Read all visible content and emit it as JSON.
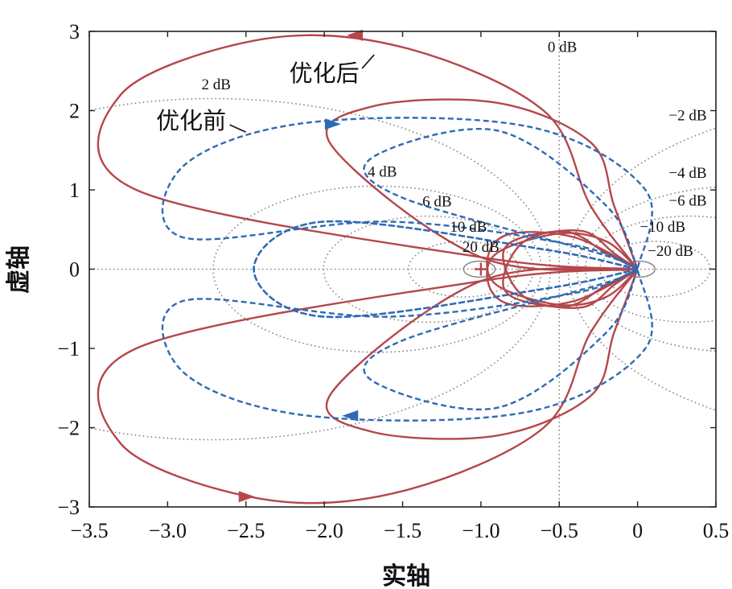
{
  "chart_data": {
    "type": "line",
    "subtype": "nyquist",
    "xlabel": "实轴",
    "ylabel": "虚轴",
    "xlim": [
      -3.5,
      0.5
    ],
    "ylim": [
      -3,
      3
    ],
    "xticks": [
      -3.5,
      -3.0,
      -2.5,
      -2.0,
      -1.5,
      -1.0,
      -0.5,
      0,
      0.5
    ],
    "xtick_labels": [
      "−3.5",
      "−3.0",
      "−2.5",
      "−2.0",
      "−1.5",
      "−1.0",
      "−0.5",
      "0",
      "0.5"
    ],
    "yticks": [
      -3,
      -2,
      -1,
      0,
      1,
      2,
      3
    ],
    "ytick_labels": [
      "−3",
      "−2",
      "−1",
      "0",
      "1",
      "2",
      "3"
    ],
    "grid": "M-circles",
    "critical_point": [
      -1,
      0
    ],
    "m_circles": [
      {
        "label": "0 dB",
        "db": 0,
        "label_pos": [
          -0.48,
          2.74
        ]
      },
      {
        "label": "2 dB",
        "db": 2,
        "label_pos": [
          -2.69,
          2.27
        ]
      },
      {
        "label": "−2 dB",
        "db": -2,
        "label_pos": [
          0.32,
          1.88
        ]
      },
      {
        "label": "4 dB",
        "db": 4,
        "label_pos": [
          -1.63,
          1.17
        ]
      },
      {
        "label": "−4 dB",
        "db": -4,
        "label_pos": [
          0.32,
          1.15
        ]
      },
      {
        "label": "6 dB",
        "db": 6,
        "label_pos": [
          -1.28,
          0.79
        ]
      },
      {
        "label": "−6 dB",
        "db": -6,
        "label_pos": [
          0.32,
          0.8
        ]
      },
      {
        "label": "10 dB",
        "db": 10,
        "label_pos": [
          -1.08,
          0.47
        ]
      },
      {
        "label": "−10 dB",
        "db": -10,
        "label_pos": [
          0.16,
          0.47
        ]
      },
      {
        "label": "20 dB",
        "db": 20,
        "label_pos": [
          -1.0,
          0.22
        ]
      },
      {
        "label": "−20 dB",
        "db": -20,
        "label_pos": [
          0.21,
          0.17
        ]
      }
    ],
    "series": [
      {
        "name": "优化后",
        "color": "#b5474b",
        "style": "solid",
        "lobes": [
          {
            "points": [
              [
                0,
                0
              ],
              [
                -1.0,
                0.15
              ],
              [
                -3.2,
                1.0
              ],
              [
                -3.3,
                2.2
              ],
              [
                -2.4,
                2.9
              ],
              [
                -1.5,
                2.8
              ],
              [
                -0.6,
                2.0
              ],
              [
                -0.3,
                0.8
              ],
              [
                0,
                0
              ]
            ]
          },
          {
            "points": [
              [
                0,
                0
              ],
              [
                -1.0,
                0.15
              ],
              [
                -1.95,
                1.55
              ],
              [
                -1.7,
                2.05
              ],
              [
                -0.9,
                2.1
              ],
              [
                -0.3,
                1.6
              ],
              [
                -0.15,
                0.8
              ],
              [
                0,
                0
              ]
            ]
          },
          {
            "points": [
              [
                0,
                0
              ],
              [
                -0.4,
                0.4
              ],
              [
                -0.8,
                0.45
              ],
              [
                -0.95,
                0.2
              ],
              [
                -0.9,
                -0.2
              ],
              [
                -0.5,
                -0.45
              ],
              [
                -0.2,
                -0.35
              ],
              [
                0,
                0
              ]
            ]
          },
          {
            "points": [
              [
                0,
                0
              ],
              [
                -0.2,
                0.2
              ],
              [
                -0.45,
                0.47
              ],
              [
                -0.8,
                0.35
              ],
              [
                -0.85,
                0.05
              ],
              [
                -0.7,
                -0.38
              ],
              [
                -0.35,
                -0.48
              ],
              [
                -0.15,
                -0.2
              ],
              [
                0,
                0
              ]
            ]
          }
        ],
        "arrow_points": [
          [
            -1.8,
            2.95
          ],
          [
            -2.5,
            -2.87
          ]
        ]
      },
      {
        "name": "优化前",
        "color": "#2f6ab3",
        "style": "dashed",
        "lobes": [
          {
            "points": [
              [
                0,
                0
              ],
              [
                -0.4,
                0.3
              ],
              [
                -1.6,
                0.6
              ],
              [
                -2.9,
                0.4
              ],
              [
                -2.9,
                1.3
              ],
              [
                -2.1,
                1.85
              ],
              [
                -0.7,
                1.8
              ],
              [
                0.05,
                1.0
              ],
              [
                0,
                0
              ]
            ]
          },
          {
            "points": [
              [
                0,
                0
              ],
              [
                -0.6,
                0.25
              ],
              [
                -2.0,
                0.6
              ],
              [
                -2.45,
                0.0
              ],
              [
                -2.0,
                -0.6
              ],
              [
                -0.6,
                -0.25
              ],
              [
                0,
                0
              ]
            ]
          },
          {
            "points": [
              [
                0,
                0
              ],
              [
                -0.2,
                0.8
              ],
              [
                -0.9,
                1.75
              ],
              [
                -1.7,
                1.4
              ],
              [
                -1.5,
                0.9
              ],
              [
                -0.25,
                0.2
              ],
              [
                0,
                0
              ]
            ]
          }
        ],
        "arrow_points": [
          [
            -1.95,
            1.83
          ],
          [
            -1.83,
            -1.85
          ]
        ]
      }
    ],
    "annotations": [
      {
        "text": "优化后",
        "at": [
          -2.0,
          2.37
        ]
      },
      {
        "text": "优化前",
        "at": [
          -2.85,
          1.77
        ]
      }
    ]
  }
}
